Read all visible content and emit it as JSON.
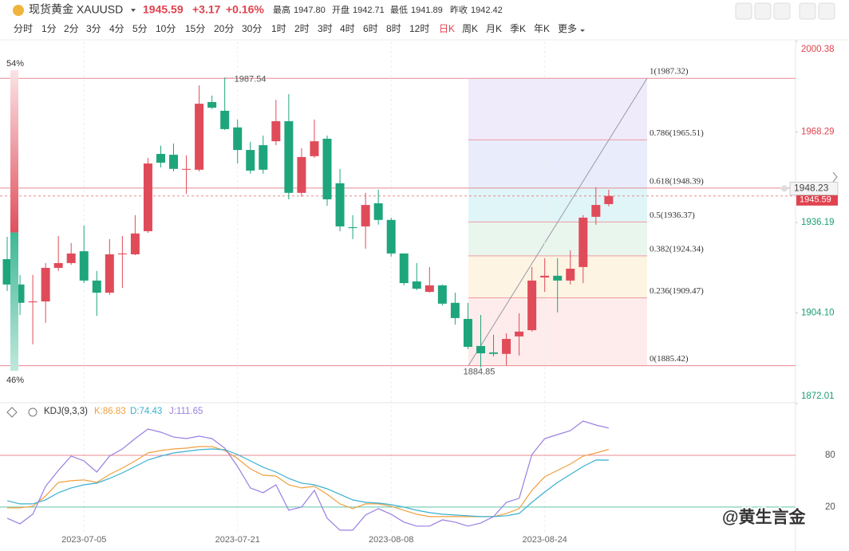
{
  "header": {
    "name": "现货黄金 XAUUSD",
    "price": "1945.59",
    "change": "+3.17",
    "change_pct": "+0.16%",
    "stats": [
      {
        "label": "最高",
        "value": "1947.80"
      },
      {
        "label": "开盘",
        "value": "1942.71"
      },
      {
        "label": "最低",
        "value": "1941.89"
      },
      {
        "label": "昨收",
        "value": "1942.42"
      }
    ]
  },
  "tabs": [
    "分时",
    "1分",
    "2分",
    "3分",
    "4分",
    "5分",
    "10分",
    "15分",
    "20分",
    "30分",
    "1时",
    "2时",
    "3时",
    "4时",
    "6时",
    "8时",
    "12时",
    "日K",
    "周K",
    "月K",
    "季K",
    "年K",
    "更多"
  ],
  "active_tab": 17,
  "watermark": "@黄生言金",
  "sentiment": {
    "values": [
      54,
      46
    ],
    "value_labels": [
      "54%",
      "46%"
    ],
    "colors": [
      "#e8707a",
      "#5cc3a8"
    ]
  },
  "chart_data": [
    {
      "type": "candlestick",
      "up_color": "#e04b5a",
      "down_color": "#1ea57c",
      "categories": [
        null,
        null,
        null,
        null,
        null,
        null,
        "2023-07-05",
        null,
        null,
        null,
        null,
        null,
        null,
        null,
        null,
        null,
        null,
        null,
        "2023-07-21",
        null,
        null,
        null,
        null,
        null,
        null,
        null,
        null,
        null,
        null,
        null,
        "2023-08-08",
        null,
        null,
        null,
        null,
        null,
        null,
        null,
        null,
        null,
        null,
        null,
        "2023-08-24",
        null,
        null,
        null,
        null,
        null
      ],
      "open": [
        1923.2,
        1914.2,
        1907.9,
        1908.2,
        1920.1,
        1921.8,
        1926.0,
        1915.6,
        1911.3,
        1924.9,
        1924.9,
        1933.1,
        1960.5,
        1960.2,
        1954.9,
        1954.9,
        1978.9,
        1975.8,
        1969.9,
        1961.9,
        1963.6,
        1965.0,
        1972.1,
        1946.7,
        1959.7,
        1965.9,
        1950.1,
        1934.5,
        1934.8,
        1943.0,
        1937.1,
        1925.2,
        1915.3,
        1911.6,
        1913.9,
        1907.7,
        1902.0,
        1892.4,
        1890.1,
        1889.6,
        1895.8,
        1898.0,
        1916.7,
        1917.3,
        1915.6,
        1920.4,
        1938.2,
        1942.71
      ],
      "high": [
        1931.1,
        1917.6,
        1917.6,
        1921.8,
        1931.4,
        1928.9,
        1935.1,
        1919.0,
        1930.3,
        1931.4,
        1938.8,
        1959.1,
        1963.4,
        1964.2,
        1960.0,
        1984.8,
        1981.2,
        1987.54,
        1972.7,
        1964.8,
        1967.0,
        1979.7,
        1981.7,
        1962.5,
        1972.7,
        1967.0,
        1955.2,
        1938.8,
        1946.7,
        1947.8,
        1937.9,
        1925.2,
        1921.8,
        1920.4,
        1914.2,
        1911.3,
        1907.7,
        1903.4,
        1896.4,
        1896.9,
        1904.0,
        1920.4,
        1923.5,
        1923.5,
        1926.3,
        1938.8,
        1948.7,
        1947.8
      ],
      "low": [
        1911.9,
        1903.4,
        1893.0,
        1900.6,
        1919.0,
        1921.2,
        1914.7,
        1903.1,
        1910.5,
        1913.0,
        1924.6,
        1932.5,
        1955.7,
        1954.3,
        1946.4,
        1954.3,
        1976.4,
        1969.0,
        1957.1,
        1953.5,
        1953.5,
        1963.6,
        1944.4,
        1945.3,
        1959.1,
        1942.1,
        1933.1,
        1930.3,
        1926.9,
        1935.4,
        1924.1,
        1913.9,
        1912.2,
        1911.3,
        1906.8,
        1900.0,
        1891.3,
        1884.85,
        1888.7,
        1885.5,
        1889.0,
        1897.5,
        1911.6,
        1904.3,
        1914.2,
        1914.7,
        1935.4,
        1941.89
      ],
      "close": [
        1914.2,
        1907.7,
        1908.2,
        1920.1,
        1921.8,
        1925.2,
        1915.6,
        1911.3,
        1924.9,
        1925.2,
        1932.3,
        1957.1,
        1957.4,
        1955.2,
        1955.2,
        1978.3,
        1976.9,
        1969.3,
        1961.9,
        1954.6,
        1954.9,
        1972.1,
        1946.7,
        1959.4,
        1965.0,
        1944.4,
        1934.8,
        1934.2,
        1942.4,
        1937.1,
        1925.2,
        1914.7,
        1912.7,
        1913.9,
        1907.4,
        1902.3,
        1892.1,
        1889.8,
        1889.6,
        1894.9,
        1897.5,
        1915.6,
        1917.3,
        1915.6,
        1919.8,
        1937.9,
        1942.4,
        1945.59
      ],
      "ylim": [
        1872.01,
        2000.38
      ],
      "yticks": [
        2000.38,
        1968.29,
        1936.19,
        {
          "value": 1904.1,
          "label": "1904.10"
        },
        1872.01
      ],
      "fib": [
        {
          "value": 1987.32,
          "label": "1(1987.32)"
        },
        {
          "value": 1965.51,
          "label": "0.786(1965.51)"
        },
        {
          "value": 1948.39,
          "label": "0.618(1948.39)"
        },
        {
          "value": 1936.37,
          "label": "0.5(1936.37)"
        },
        {
          "value": 1924.34,
          "label": "0.382(1924.34)"
        },
        {
          "value": 1909.47,
          "label": "0.236(1909.47)"
        },
        {
          "value": 1885.42,
          "label": "0(1885.42)"
        }
      ],
      "marker_price": 1948.23
    },
    {
      "type": "line",
      "title": "KDJ(9,3,3)",
      "ylim": [
        -30,
        141
      ],
      "yticks": [
        80,
        20
      ],
      "series": [
        {
          "label": "K:86.83",
          "color": "#f0a040",
          "values": [
            19.1,
            19.1,
            20.9,
            32.9,
            48.6,
            50.5,
            51.4,
            48.6,
            57.8,
            65.2,
            73.5,
            82.8,
            85.5,
            87.4,
            88.3,
            90.2,
            90.2,
            85.5,
            76.3,
            64.3,
            56.9,
            56.0,
            45.8,
            42.2,
            44.0,
            34.8,
            23.7,
            18.2,
            23.7,
            23.7,
            20.9,
            16.3,
            11.7,
            8.9,
            8.9,
            8.9,
            8.9,
            8.9,
            8.9,
            12.6,
            18.2,
            39.4,
            55.1,
            62.5,
            69.8,
            79.1,
            82.8,
            86.83
          ]
        },
        {
          "label": "D:74.43",
          "color": "#3ab0d0",
          "values": [
            27.4,
            23.7,
            23.7,
            28.3,
            36.6,
            42.2,
            45.8,
            47.7,
            53.2,
            59.7,
            67.1,
            74.5,
            79.1,
            82.8,
            84.6,
            86.5,
            87.4,
            86.5,
            80.9,
            73.5,
            66.2,
            60.6,
            53.2,
            47.7,
            45.8,
            41.2,
            34.8,
            28.3,
            25.5,
            24.6,
            22.8,
            20.0,
            16.3,
            13.5,
            11.7,
            10.8,
            9.9,
            8.9,
            8.9,
            9.9,
            12.6,
            25.5,
            37.5,
            48.6,
            57.8,
            67.1,
            74.5,
            74.43
          ]
        },
        {
          "label": "J:111.65",
          "color": "#9a7ee0",
          "values": [
            7.1,
            0.6,
            11.7,
            44.0,
            62.5,
            79.1,
            73.5,
            60.6,
            79.1,
            87.4,
            99.4,
            110.5,
            106.8,
            101.2,
            99.4,
            102.2,
            99.4,
            88.3,
            67.1,
            42.2,
            36.6,
            45.8,
            16.3,
            20.0,
            39.4,
            7.1,
            -6.8,
            -6.8,
            10.8,
            18.2,
            11.7,
            2.5,
            -2.1,
            -2.1,
            5.2,
            2.5,
            -2.1,
            1.5,
            8.9,
            25.5,
            30.2,
            80.9,
            99.4,
            104.0,
            108.6,
            119.7,
            115.1,
            111.65
          ]
        }
      ]
    }
  ]
}
